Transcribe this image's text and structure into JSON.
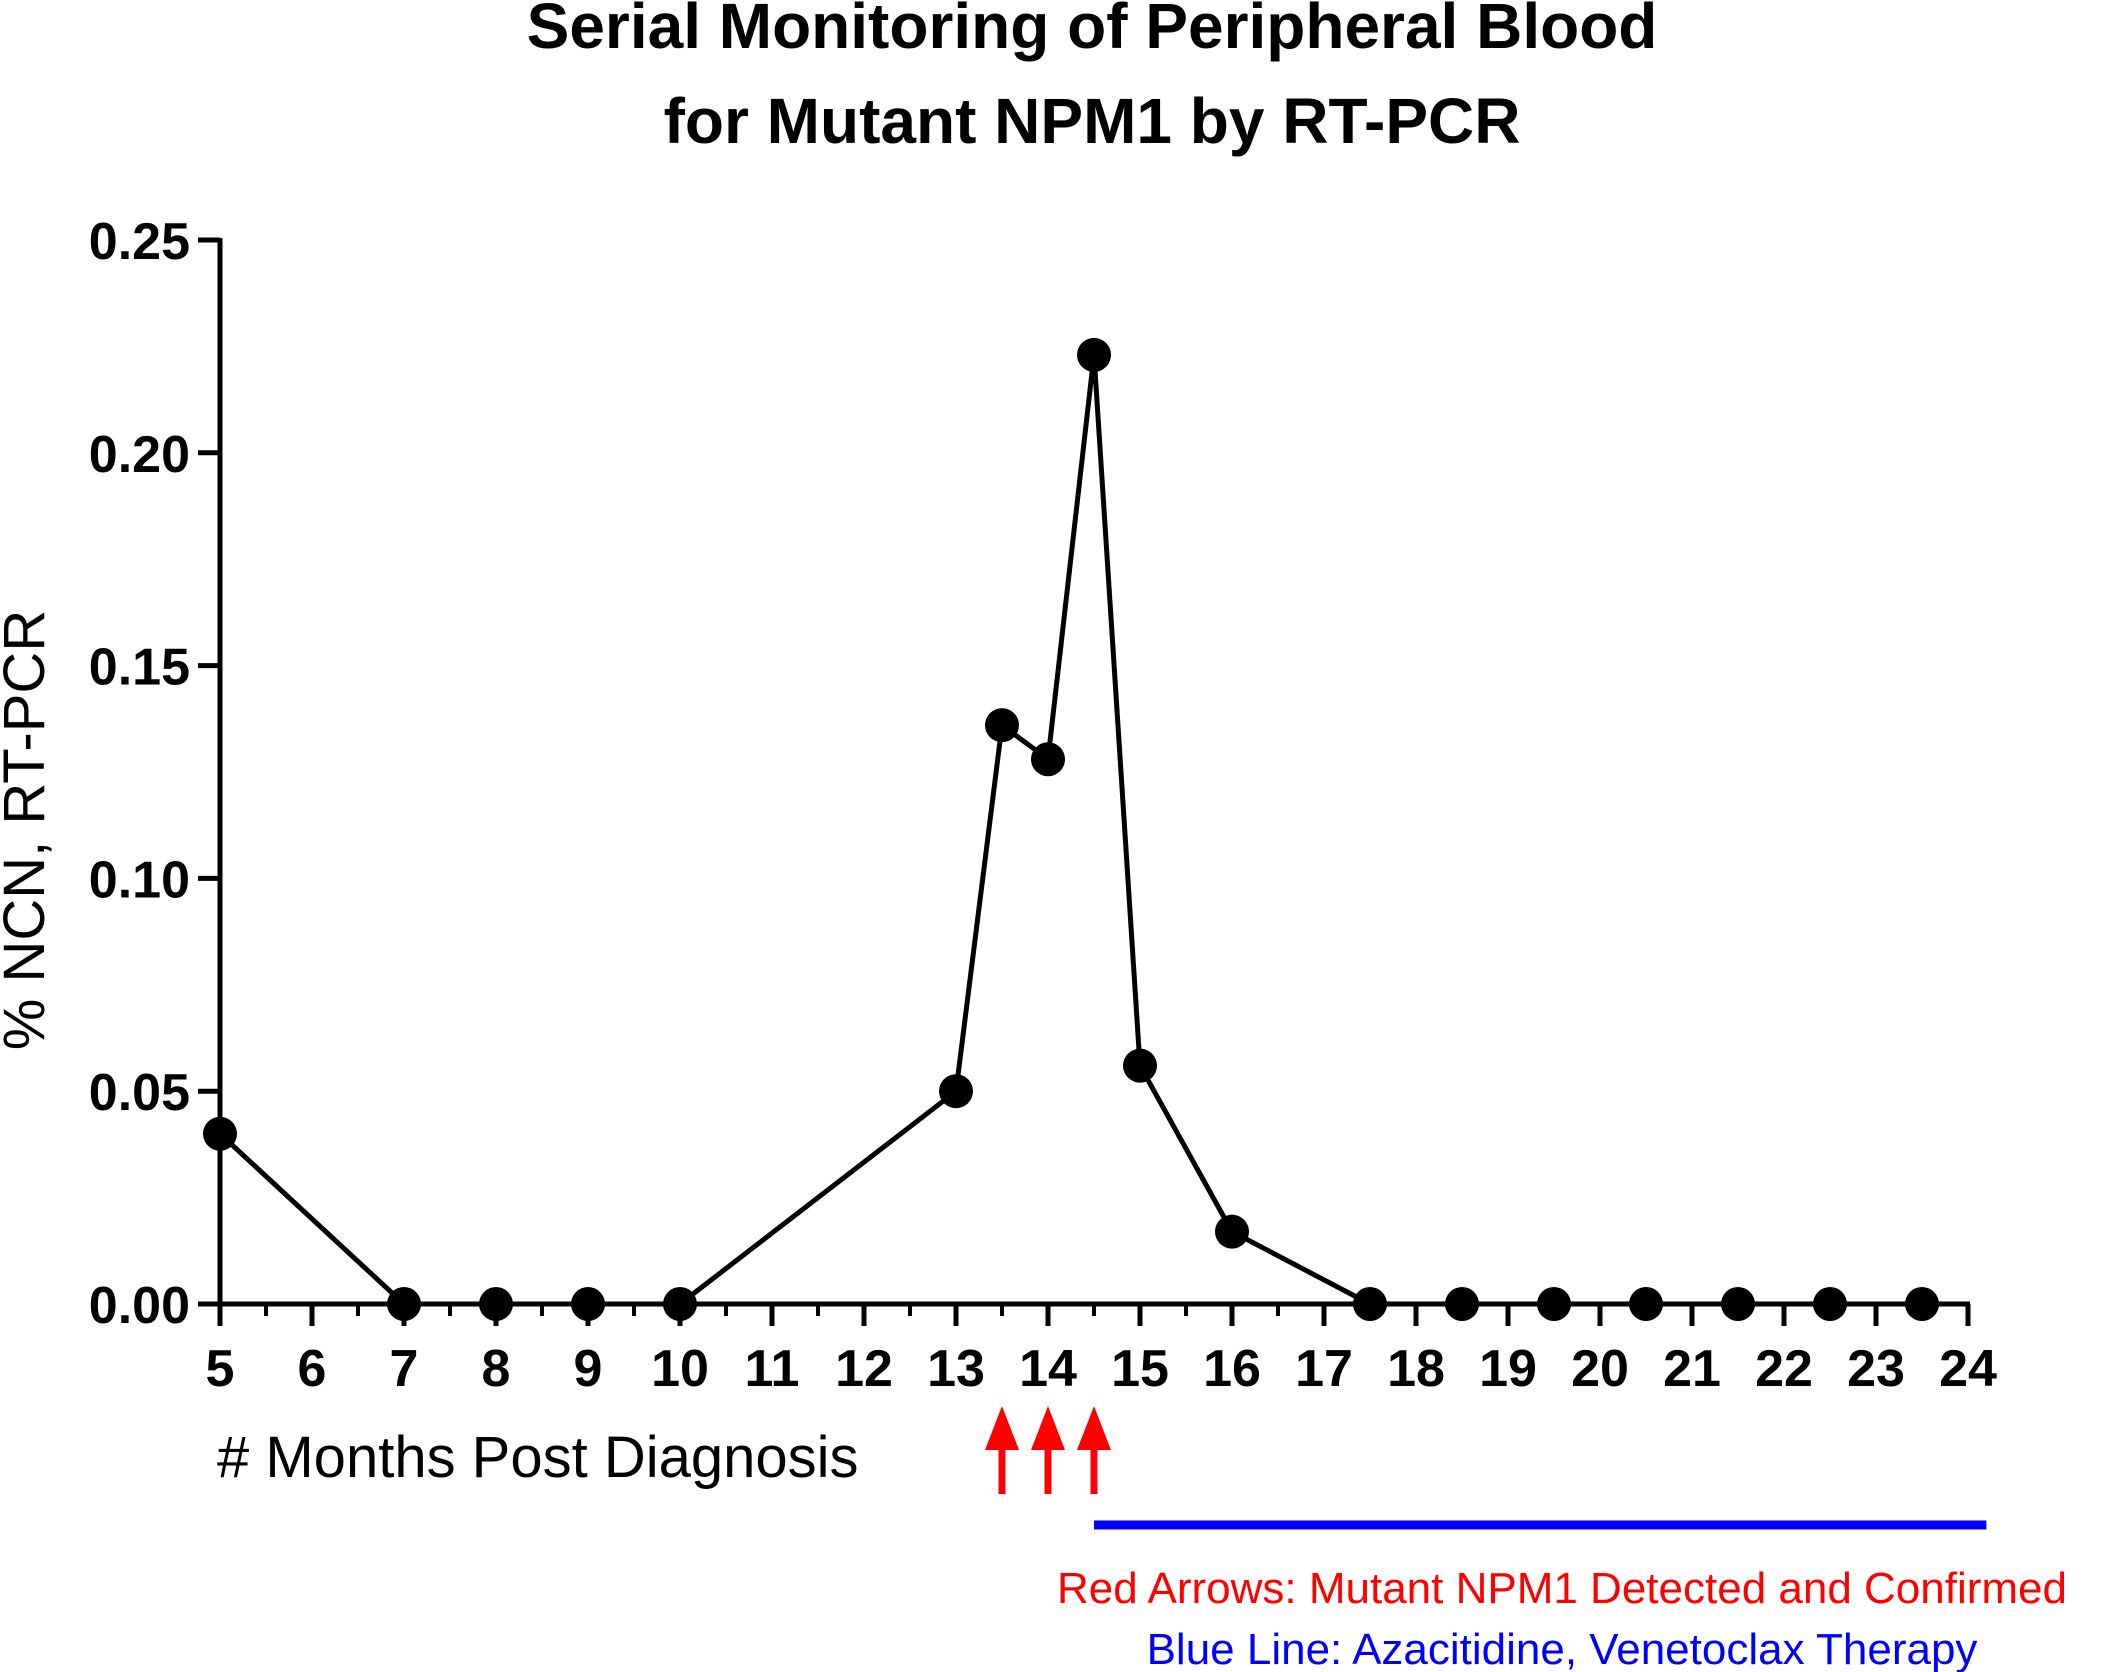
{
  "chart_data": {
    "type": "line",
    "title_lines": [
      "Serial Monitoring of Peripheral Blood",
      "for Mutant  NPM1 by RT-PCR"
    ],
    "xlabel": "# Months Post Diagnosis",
    "ylabel": "% NCN, RT-PCR",
    "xlim": [
      5,
      24
    ],
    "ylim": [
      0,
      0.25
    ],
    "x_ticks": [
      5,
      6,
      7,
      8,
      9,
      10,
      11,
      12,
      13,
      14,
      15,
      16,
      17,
      18,
      19,
      20,
      21,
      22,
      23,
      24
    ],
    "y_ticks": [
      0,
      0.05,
      0.1,
      0.15,
      0.2,
      0.25
    ],
    "y_tick_labels": [
      "0.00",
      "0.05",
      "0.10",
      "0.15",
      "0.20",
      "0.25"
    ],
    "grid": false,
    "series": [
      {
        "x": [
          5,
          7,
          8,
          9,
          10,
          13,
          13.5,
          14,
          14.5,
          15,
          16,
          17.5,
          18.5,
          19.5,
          20.5,
          21.5,
          22.5,
          23.5
        ],
        "y": [
          0.04,
          0,
          0,
          0,
          0,
          0.05,
          0.136,
          0.128,
          0.223,
          0.056,
          0.017,
          0,
          0,
          0,
          0,
          0,
          0,
          0
        ],
        "color": "#000000"
      }
    ],
    "annotations": {
      "red_arrows_x": [
        13.5,
        14,
        14.5
      ],
      "red_arrow_color": "#ff0000",
      "blue_line_x_range": [
        14.5,
        24.2
      ],
      "blue_line_color": "#0000ff",
      "red_note": "Red Arrows: Mutant NPM1 Detected and Confirmed",
      "blue_note": "Blue Line: Azacitidine, Venetoclax Therapy"
    }
  }
}
